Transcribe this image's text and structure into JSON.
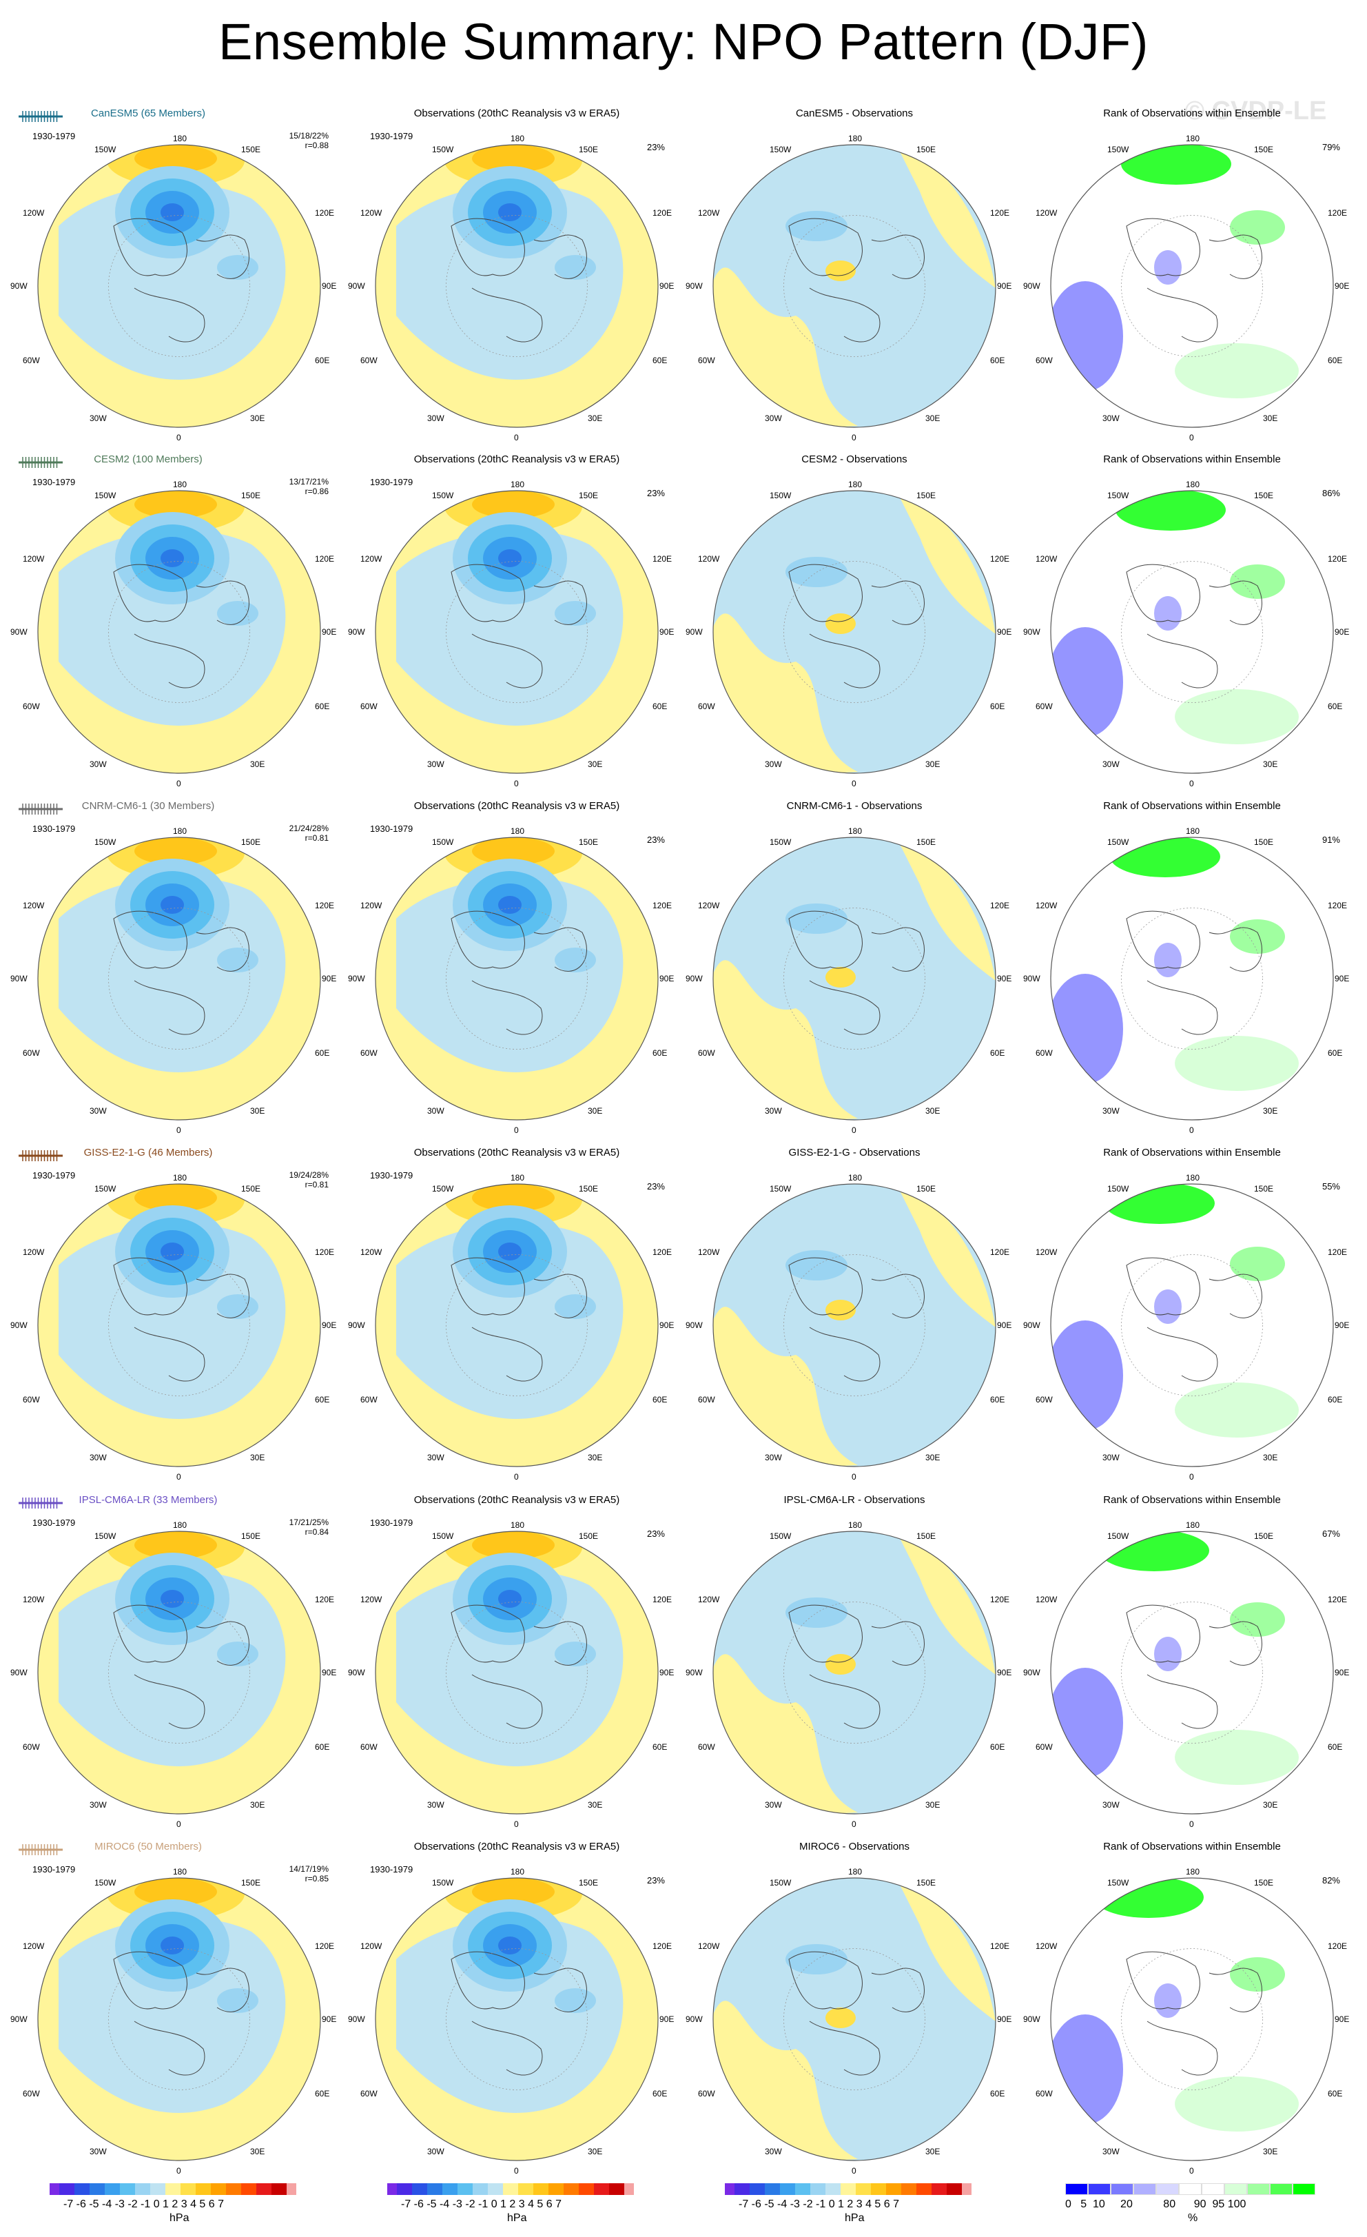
{
  "title": "Ensemble Summary: NPO Pattern (DJF)",
  "watermark": "© CVDP-LE",
  "period": "1930-1979",
  "obs_title": "Observations (20thC Reanalysis v3 w ERA5)",
  "obs_pct": "23%",
  "rank_title": "Rank of Observations within Ensemble",
  "longitude_labels": {
    "top": "180",
    "bottom": "0",
    "w150": "150W",
    "e150": "150E",
    "w120": "120W",
    "e120": "120E",
    "w90": "90W",
    "e90": "90E",
    "w60": "60W",
    "e60": "60E",
    "w30": "30W",
    "e30": "30E"
  },
  "rows": [
    {
      "model_title": "CanESM5 (65 Members)",
      "color": "#1a6e8a",
      "stats1": "15/18/22%",
      "stats2": "r=0.88",
      "diff_title": "CanESM5 - Observations",
      "rank_pct": "79%"
    },
    {
      "model_title": "CESM2 (100 Members)",
      "color": "#4f7a5a",
      "stats1": "13/17/21%",
      "stats2": "r=0.86",
      "diff_title": "CESM2 - Observations",
      "rank_pct": "86%"
    },
    {
      "model_title": "CNRM-CM6-1 (30 Members)",
      "color": "#6b6b6b",
      "stats1": "21/24/28%",
      "stats2": "r=0.81",
      "diff_title": "CNRM-CM6-1 - Observations",
      "rank_pct": "91%"
    },
    {
      "model_title": "GISS-E2-1-G (46 Members)",
      "color": "#8a4a1e",
      "stats1": "19/24/28%",
      "stats2": "r=0.81",
      "diff_title": "GISS-E2-1-G - Observations",
      "rank_pct": "55%"
    },
    {
      "model_title": "IPSL-CM6A-LR (33 Members)",
      "color": "#6a4fc4",
      "stats1": "17/21/25%",
      "stats2": "r=0.84",
      "diff_title": "IPSL-CM6A-LR - Observations",
      "rank_pct": "67%"
    },
    {
      "model_title": "MIROC6 (50 Members)",
      "color": "#c8a07a",
      "stats1": "14/17/19%",
      "stats2": "r=0.85",
      "diff_title": "MIROC6 - Observations",
      "rank_pct": "82%"
    }
  ],
  "colorbar_hpa": {
    "colors": [
      "#7a2ae6",
      "#4b2ae6",
      "#2a52e6",
      "#2a7ae6",
      "#3aa0ee",
      "#5cc0f0",
      "#9ad4f2",
      "#bfe3f2",
      "#fff59a",
      "#ffe04a",
      "#ffc61a",
      "#ffa200",
      "#ff7a00",
      "#ff4a00",
      "#e61a1a",
      "#c80000",
      "#f5a3a3"
    ],
    "ticks": "-7 -6 -5 -4 -3 -2 -1 0 1 2 3 4 5 6 7",
    "unit": "hPa"
  },
  "colorbar_rank": {
    "colors": [
      "#0000ff",
      "#3a3aff",
      "#7a7aff",
      "#b0b0ff",
      "#d8d8ff",
      "#ffffff",
      "#ffffff",
      "#d8ffd8",
      "#a0ffa0",
      "#50ff50",
      "#00ff00"
    ],
    "ticks": "0   5  10     20          80      90  95 100",
    "unit": "%"
  }
}
